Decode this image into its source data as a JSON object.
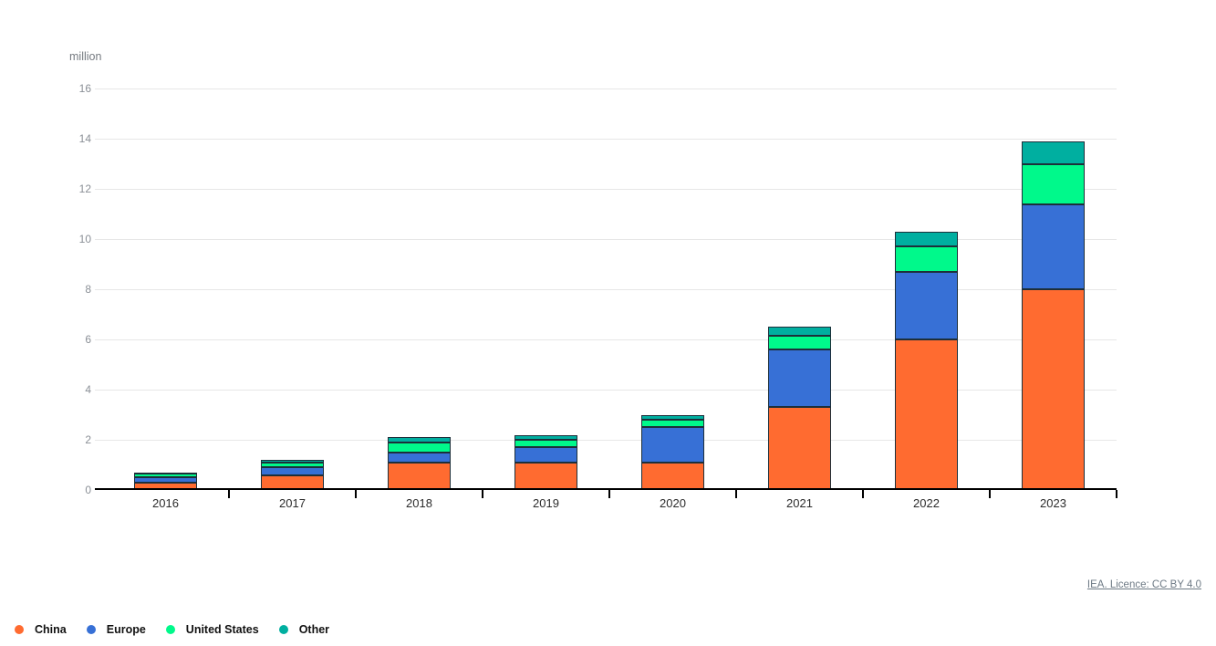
{
  "header": {
    "unit_label": "million"
  },
  "chart_data": {
    "type": "bar",
    "stacked": true,
    "title": "",
    "xlabel": "",
    "ylabel": "million",
    "ylim": [
      0,
      16
    ],
    "yticks": [
      0,
      2,
      4,
      6,
      8,
      10,
      12,
      14,
      16
    ],
    "grid": true,
    "legend_position": "bottom-left",
    "categories": [
      "2016",
      "2017",
      "2018",
      "2019",
      "2020",
      "2021",
      "2022",
      "2023"
    ],
    "series": [
      {
        "name": "China",
        "color": "#ff6b30",
        "values": [
          0.3,
          0.6,
          1.1,
          1.1,
          1.1,
          3.3,
          6.0,
          8.0
        ]
      },
      {
        "name": "Europe",
        "color": "#3770d6",
        "values": [
          0.2,
          0.3,
          0.4,
          0.6,
          1.4,
          2.3,
          2.7,
          3.4
        ]
      },
      {
        "name": "United States",
        "color": "#00f98b",
        "values": [
          0.15,
          0.2,
          0.4,
          0.3,
          0.3,
          0.55,
          1.0,
          1.6
        ]
      },
      {
        "name": "Other",
        "color": "#00afa0",
        "values": [
          0.05,
          0.1,
          0.2,
          0.2,
          0.2,
          0.35,
          0.6,
          0.9
        ]
      }
    ],
    "totals": [
      0.7,
      1.2,
      2.1,
      2.2,
      3.0,
      6.5,
      10.3,
      13.9
    ]
  },
  "footer": {
    "license_label": "IEA. Licence: CC BY 4.0"
  },
  "colors": {
    "axis": "#000000",
    "gridline": "#e7e7e7",
    "bar_border": "#1d2f3a",
    "tick_label": "#8a8f96",
    "category_label": "#2b2b2b",
    "license_text": "#6e7a85"
  }
}
